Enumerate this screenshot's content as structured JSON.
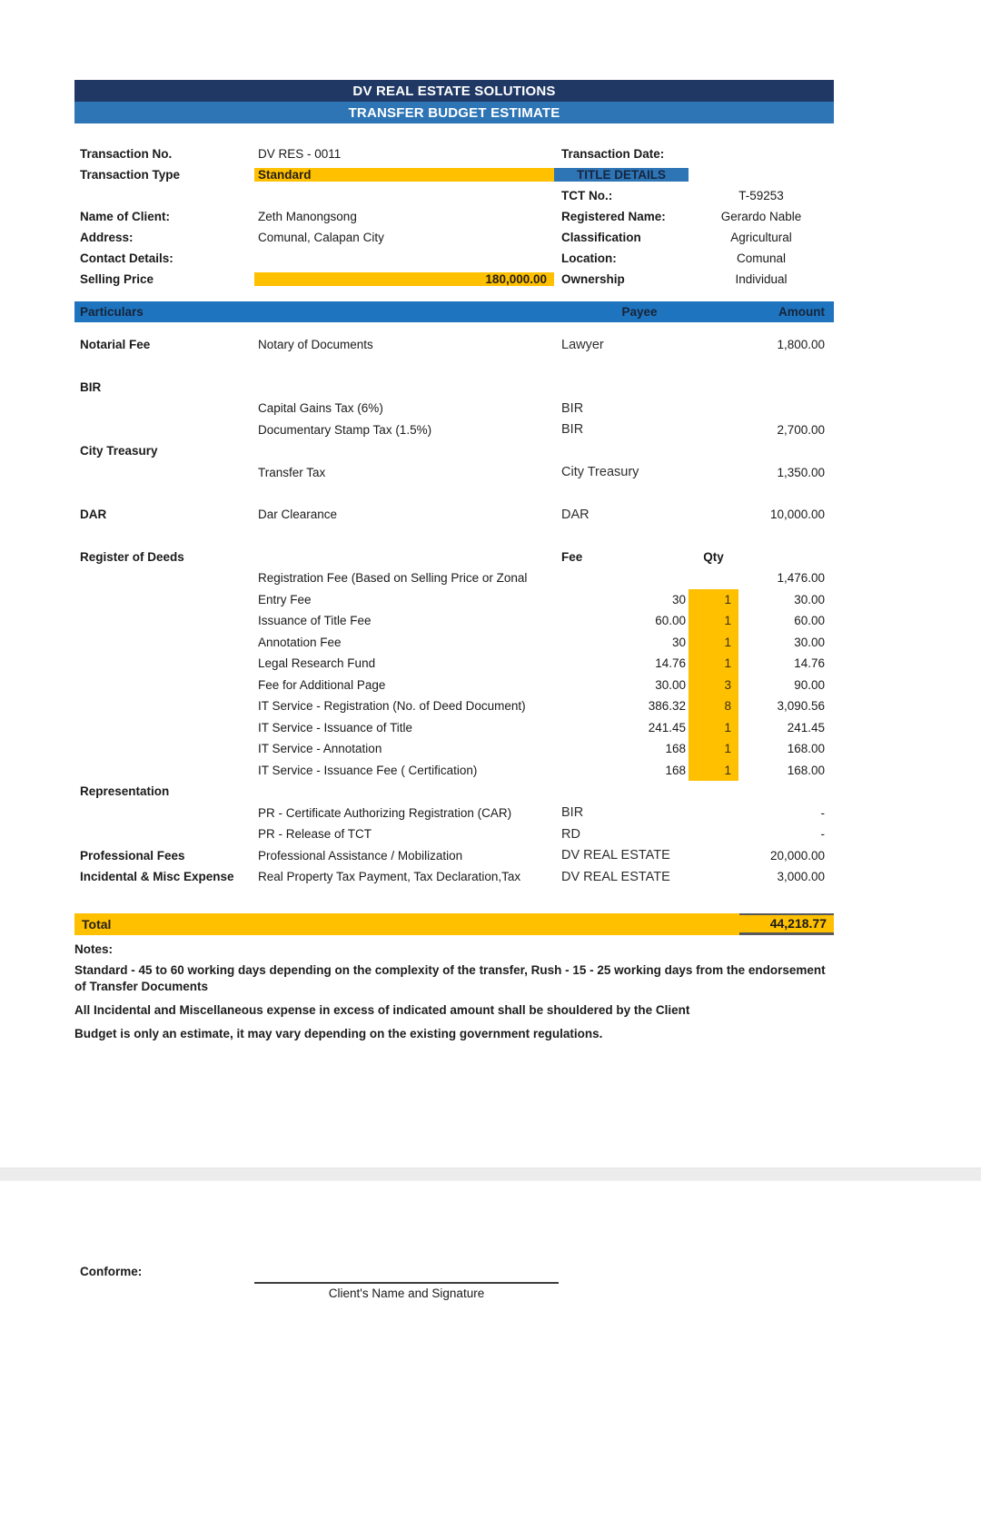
{
  "header": {
    "company": "DV REAL ESTATE SOLUTIONS",
    "title": "TRANSFER BUDGET ESTIMATE"
  },
  "info": {
    "rows": [
      {
        "l1": "Transaction No.",
        "v1": "DV RES - 0011",
        "l2": "Transaction Date:",
        "v2": ""
      },
      {
        "l1": "Transaction Type",
        "v1": "Standard",
        "l2": "TITLE DETAILS",
        "v2": ""
      },
      {
        "l1": "",
        "v1": "",
        "l2": "TCT No.:",
        "v2": "T-59253"
      },
      {
        "l1": "Name of Client:",
        "v1": "Zeth Manongsong",
        "l2": "Registered Name:",
        "v2": "Gerardo Nable"
      },
      {
        "l1": "Address:",
        "v1": "Comunal, Calapan City",
        "l2": "Classification",
        "v2": "Agricultural"
      },
      {
        "l1": "Contact Details:",
        "v1": "",
        "l2": "Location:",
        "v2": "Comunal"
      },
      {
        "l1": "Selling Price",
        "v1": "180,000.00",
        "l2": "Ownership",
        "v2": "Individual"
      }
    ]
  },
  "table": {
    "headers": {
      "particulars": "Particulars",
      "payee": "Payee",
      "amount": "Amount"
    },
    "rows": [
      {
        "p": "Notarial Fee",
        "d": "Notary of Documents",
        "pf": "Lawyer",
        "q": "",
        "a": "1,800.00",
        "cls": "payee gap-a"
      },
      {
        "p": "BIR",
        "d": "",
        "pf": "",
        "q": "",
        "a": "",
        "cls": "gap-b"
      },
      {
        "p": "",
        "d": "Capital Gains Tax (6%)",
        "pf": "BIR",
        "q": "",
        "a": "",
        "cls": "payee"
      },
      {
        "p": "",
        "d": "Documentary Stamp Tax (1.5%)",
        "pf": "BIR",
        "q": "",
        "a": "2,700.00",
        "cls": "payee"
      },
      {
        "p": "City Treasury",
        "d": "",
        "pf": "",
        "q": "",
        "a": "",
        "cls": ""
      },
      {
        "p": "",
        "d": "Transfer Tax",
        "pf": "City Treasury",
        "q": "",
        "a": "1,350.00",
        "cls": "payee"
      },
      {
        "p": "DAR",
        "d": "Dar Clearance",
        "pf": "DAR",
        "q": "",
        "a": "10,000.00",
        "cls": "payee gap-b"
      },
      {
        "p": "Register of Deeds",
        "d": "",
        "pf": "Fee",
        "q": "Qty",
        "a": "",
        "cls": "subhead gap-b"
      },
      {
        "p": "",
        "d": "Registration Fee (Based on Selling Price or Zonal",
        "pf": "",
        "q": "",
        "a": "1,476.00",
        "cls": ""
      },
      {
        "p": "",
        "d": "Entry Fee",
        "pf": "30",
        "q": "1",
        "a": "30.00",
        "cls": "fee qtyhl"
      },
      {
        "p": "",
        "d": "Issuance of Title Fee",
        "pf": "60.00",
        "q": "1",
        "a": "60.00",
        "cls": "fee qtyhl"
      },
      {
        "p": "",
        "d": "Annotation Fee",
        "pf": "30",
        "q": "1",
        "a": "30.00",
        "cls": "fee qtyhl"
      },
      {
        "p": "",
        "d": "Legal Research Fund",
        "pf": "14.76",
        "q": "1",
        "a": "14.76",
        "cls": "fee qtyhl"
      },
      {
        "p": "",
        "d": "Fee for Additional Page",
        "pf": "30.00",
        "q": "3",
        "a": "90.00",
        "cls": "fee qtyhl"
      },
      {
        "p": "",
        "d": "IT Service - Registration (No. of Deed Document)",
        "pf": "386.32",
        "q": "8",
        "a": "3,090.56",
        "cls": "fee qtyhl"
      },
      {
        "p": "",
        "d": "IT Service - Issuance of Title",
        "pf": "241.45",
        "q": "1",
        "a": "241.45",
        "cls": "fee qtyhl"
      },
      {
        "p": "",
        "d": "IT Service - Annotation",
        "pf": "168",
        "q": "1",
        "a": "168.00",
        "cls": "fee qtyhl"
      },
      {
        "p": "",
        "d": "IT Service - Issuance Fee ( Certification)",
        "pf": "168",
        "q": "1",
        "a": "168.00",
        "cls": "fee qtyhl"
      },
      {
        "p": "Representation",
        "d": "",
        "pf": "",
        "q": "",
        "a": "",
        "cls": ""
      },
      {
        "p": "",
        "d": "PR - Certificate Authorizing Registration (CAR)",
        "pf": "BIR",
        "q": "",
        "a": "-",
        "cls": "payee"
      },
      {
        "p": "",
        "d": "PR - Release of TCT",
        "pf": "RD",
        "q": "",
        "a": "-",
        "cls": "payee"
      },
      {
        "p": "Professional Fees",
        "d": "Professional Assistance / Mobilization",
        "pf": "DV REAL ESTATE",
        "q": "",
        "a": "20,000.00",
        "cls": "payee"
      },
      {
        "p": "Incidental & Misc Expense",
        "d": "Real Property Tax Payment, Tax Declaration,Tax",
        "pf": "DV REAL ESTATE",
        "q": "",
        "a": "3,000.00",
        "cls": "payee"
      }
    ]
  },
  "total": {
    "label": "Total",
    "amount": "44,218.77"
  },
  "notes": {
    "label": "Notes:",
    "lines": [
      "Standard - 45 to 60 working days depending on the complexity of the transfer, Rush - 15 - 25 working days from the endorsement of Transfer Documents",
      "All Incidental and Miscellaneous expense in excess of indicated amount shall be shouldered by the Client",
      "Budget is only an estimate, it may vary depending on the existing government regulations."
    ]
  },
  "footer": {
    "conforme_label": "Conforme:",
    "signature_caption": "Client's Name and Signature"
  },
  "colors": {
    "navy": "#1F3864",
    "blue": "#2E75B6",
    "table_blue": "#1E74BE",
    "yellow": "#FFC000"
  }
}
